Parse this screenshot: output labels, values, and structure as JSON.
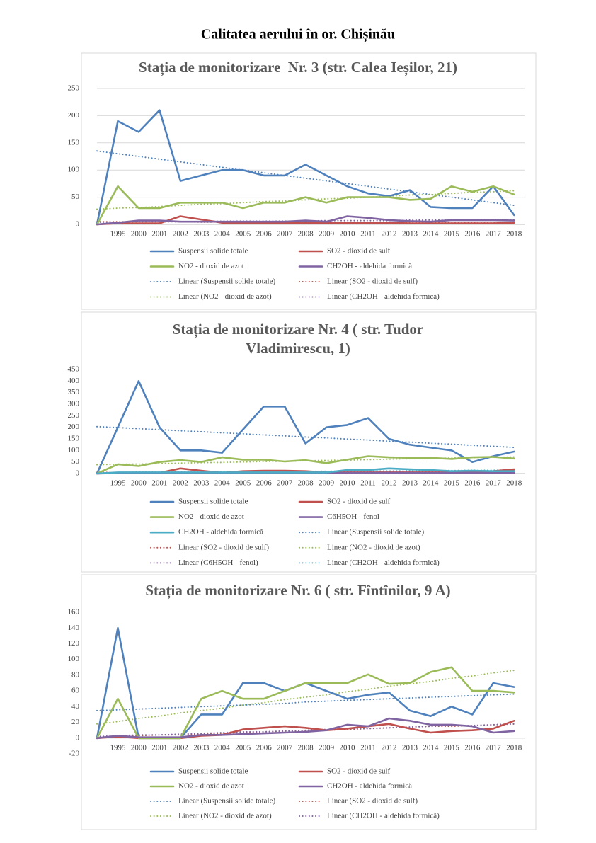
{
  "title": "Calitatea aerului în or. Chișinău",
  "chart_data": [
    {
      "type": "line",
      "title": "Stația de monitorizare  Nr. 3 (str. Calea Ieșilor, 21)",
      "categories": [
        null,
        "1995",
        "2000",
        "2001",
        "2002",
        "2003",
        "2004",
        "2005",
        "2006",
        "2007",
        "2008",
        "2009",
        "2010",
        "2011",
        "2012",
        "2013",
        "2014",
        "2015",
        "2016",
        "2017",
        "2018"
      ],
      "ylim": [
        0,
        250
      ],
      "yticks": [
        0,
        50,
        100,
        150,
        200,
        250
      ],
      "grid": true,
      "legend": "bottom",
      "series": [
        {
          "name": "Suspensii solide totale",
          "color": "#4f81bd",
          "style": "solid",
          "values": [
            0,
            190,
            170,
            210,
            80,
            90,
            100,
            100,
            90,
            90,
            110,
            90,
            70,
            57,
            52,
            63,
            32,
            30,
            30,
            70,
            17
          ]
        },
        {
          "name": "SO2 - dioxid de sulf",
          "color": "#c0504d",
          "style": "solid",
          "values": [
            0,
            2,
            2,
            2,
            15,
            9,
            3,
            3,
            3,
            3,
            3,
            3,
            3,
            3,
            3,
            2,
            2,
            2,
            2,
            2,
            3
          ]
        },
        {
          "name": "NO2 - dioxid de azot",
          "color": "#9bbb59",
          "style": "solid",
          "values": [
            0,
            70,
            30,
            30,
            40,
            40,
            40,
            30,
            40,
            40,
            50,
            40,
            50,
            50,
            50,
            45,
            47,
            70,
            60,
            70,
            55
          ]
        },
        {
          "name": "CH2OH - aldehida formică",
          "color": "#8064a2",
          "style": "solid",
          "values": [
            0,
            3,
            7,
            7,
            5,
            5,
            5,
            5,
            5,
            5,
            7,
            5,
            15,
            12,
            8,
            6,
            5,
            8,
            8,
            8,
            7
          ]
        },
        {
          "name": "Linear (Suspensii solide totale)",
          "color": "#4f81bd",
          "style": "dotted",
          "values": [
            135,
            130,
            125,
            120,
            115,
            110,
            105,
            100,
            95,
            90,
            85,
            80,
            75,
            70,
            65,
            60,
            55,
            50,
            45,
            40,
            35
          ]
        },
        {
          "name": "Linear (SO2 - dioxid de sulf)",
          "color": "#c0504d",
          "style": "dotted",
          "values": [
            5,
            5,
            5,
            5,
            5,
            4,
            4,
            4,
            4,
            4,
            4,
            4,
            4,
            4,
            4,
            3,
            3,
            3,
            3,
            3,
            3
          ]
        },
        {
          "name": "Linear (NO2 - dioxid de azot)",
          "color": "#9bbb59",
          "style": "dotted",
          "values": [
            28,
            30,
            31,
            33,
            35,
            37,
            38,
            40,
            42,
            43,
            45,
            47,
            48,
            50,
            52,
            54,
            55,
            57,
            59,
            60,
            62
          ]
        },
        {
          "name": "Linear (CH2OH - aldehida formică)",
          "color": "#8064a2",
          "style": "dotted",
          "values": [
            4,
            4,
            5,
            5,
            5,
            5,
            6,
            6,
            6,
            6,
            6,
            7,
            7,
            7,
            7,
            8,
            8,
            8,
            8,
            9,
            9
          ]
        }
      ]
    },
    {
      "type": "line",
      "title": [
        "Stația de monitorizare Nr. 4 ( str. Tudor",
        "Vladimirescu, 1)"
      ],
      "categories": [
        null,
        "1995",
        "2000",
        "2001",
        "2002",
        "2003",
        "2004",
        "2005",
        "2006",
        "2007",
        "2008",
        "2009",
        "2010",
        "2011",
        "2012",
        "2013",
        "2014",
        "2015",
        "2016",
        "2017",
        "2018"
      ],
      "ylim": [
        0,
        450
      ],
      "yticks": [
        0,
        50,
        100,
        150,
        200,
        250,
        300,
        350,
        400,
        450
      ],
      "grid": false,
      "legend": "bottom",
      "series": [
        {
          "name": "Suspensii solide totale",
          "color": "#4f81bd",
          "style": "solid",
          "values": [
            0,
            200,
            400,
            200,
            100,
            100,
            90,
            190,
            290,
            290,
            130,
            200,
            210,
            240,
            150,
            125,
            112,
            100,
            50,
            75,
            95
          ]
        },
        {
          "name": "SO2 - dioxid de sulf",
          "color": "#c0504d",
          "style": "solid",
          "values": [
            0,
            3,
            3,
            3,
            22,
            12,
            3,
            10,
            12,
            12,
            10,
            5,
            5,
            5,
            5,
            5,
            5,
            5,
            5,
            10,
            18
          ]
        },
        {
          "name": "NO2 - dioxid de azot",
          "color": "#9bbb59",
          "style": "solid",
          "values": [
            0,
            40,
            32,
            50,
            58,
            50,
            70,
            60,
            60,
            52,
            58,
            45,
            60,
            75,
            70,
            68,
            68,
            63,
            70,
            72,
            65
          ]
        },
        {
          "name": "C6H5OH - fenol",
          "color": "#8064a2",
          "style": "solid",
          "values": [
            0,
            2,
            2,
            2,
            2,
            2,
            2,
            2,
            2,
            2,
            2,
            2,
            3,
            3,
            3,
            3,
            3,
            3,
            3,
            3,
            3
          ]
        },
        {
          "name": "CH2OH - aldehida formică",
          "color": "#4bacc6",
          "style": "solid",
          "values": [
            0,
            5,
            5,
            5,
            5,
            5,
            5,
            5,
            5,
            5,
            5,
            5,
            15,
            15,
            22,
            18,
            15,
            10,
            12,
            10,
            10
          ]
        },
        {
          "name": "Linear (Suspensii solide totale)",
          "color": "#4f81bd",
          "style": "dotted",
          "values": [
            203,
            199,
            194,
            190,
            185,
            181,
            176,
            172,
            167,
            163,
            158,
            154,
            149,
            145,
            140,
            136,
            131,
            127,
            122,
            118,
            113
          ]
        },
        {
          "name": "Linear (SO2 - dioxid de sulf)",
          "color": "#c0504d",
          "style": "dotted",
          "values": [
            5,
            5,
            6,
            6,
            6,
            6,
            7,
            7,
            7,
            7,
            7,
            8,
            8,
            8,
            8,
            9,
            9,
            9,
            9,
            10,
            10
          ]
        },
        {
          "name": "Linear (NO2 - dioxid de azot)",
          "color": "#9bbb59",
          "style": "dotted",
          "values": [
            38,
            40,
            41,
            43,
            45,
            47,
            48,
            50,
            52,
            53,
            55,
            57,
            58,
            60,
            62,
            64,
            65,
            67,
            69,
            70,
            72
          ]
        },
        {
          "name": "Linear (C6H5OH - fenol)",
          "color": "#8064a2",
          "style": "dotted",
          "values": [
            2,
            2,
            2,
            2,
            2,
            2,
            2,
            2,
            2,
            2,
            3,
            3,
            3,
            3,
            3,
            3,
            3,
            3,
            3,
            3,
            3
          ]
        },
        {
          "name": "Linear (CH2OH - aldehida formică)",
          "color": "#4bacc6",
          "style": "dotted",
          "values": [
            3,
            4,
            4,
            5,
            5,
            6,
            7,
            7,
            8,
            8,
            9,
            10,
            10,
            11,
            11,
            12,
            13,
            13,
            14,
            14,
            15
          ]
        }
      ]
    },
    {
      "type": "line",
      "title": "Stația de monitorizare Nr. 6 ( str. Fîntînilor, 9 A)",
      "categories": [
        null,
        "1995",
        "2000",
        "2001",
        "2002",
        "2003",
        "2004",
        "2005",
        "2006",
        "2007",
        "2008",
        "2009",
        "2010",
        "2011",
        "2012",
        "2013",
        "2014",
        "2015",
        "2016",
        "2017",
        "2018"
      ],
      "ylim": [
        -20,
        160
      ],
      "yticks": [
        -20,
        0,
        20,
        40,
        60,
        80,
        100,
        120,
        140,
        160
      ],
      "grid": false,
      "legend": "bottom",
      "series": [
        {
          "name": "Suspensii solide totale",
          "color": "#4f81bd",
          "style": "solid",
          "values": [
            0,
            140,
            0,
            0,
            0,
            30,
            30,
            70,
            70,
            60,
            70,
            60,
            50,
            55,
            58,
            35,
            28,
            40,
            30,
            70,
            65
          ]
        },
        {
          "name": "SO2 - dioxid de sulf",
          "color": "#c0504d",
          "style": "solid",
          "values": [
            0,
            2,
            0,
            0,
            0,
            3,
            4,
            11,
            13,
            15,
            13,
            10,
            12,
            15,
            18,
            12,
            7,
            9,
            10,
            12,
            22
          ]
        },
        {
          "name": "NO2 - dioxid de azot",
          "color": "#9bbb59",
          "style": "solid",
          "values": [
            0,
            50,
            0,
            0,
            0,
            50,
            60,
            50,
            50,
            60,
            70,
            70,
            70,
            81,
            69,
            70,
            84,
            90,
            60,
            60,
            58
          ]
        },
        {
          "name": "CH2OH - aldehida formică",
          "color": "#8064a2",
          "style": "solid",
          "values": [
            0,
            3,
            1,
            1,
            1,
            4,
            4,
            5,
            6,
            7,
            8,
            10,
            17,
            15,
            25,
            22,
            17,
            17,
            15,
            7,
            9
          ]
        },
        {
          "name": "Linear (Suspensii solide totale)",
          "color": "#4f81bd",
          "style": "dotted",
          "values": [
            35,
            36,
            37,
            38,
            39,
            40,
            41,
            42,
            43,
            44,
            46,
            47,
            48,
            49,
            50,
            51,
            52,
            53,
            54,
            55,
            56
          ]
        },
        {
          "name": "Linear (SO2 - dioxid de sulf)",
          "color": "#c0504d",
          "style": "dotted",
          "values": [
            1,
            2,
            3,
            4,
            4,
            5,
            6,
            7,
            8,
            9,
            9,
            10,
            11,
            12,
            13,
            14,
            15,
            15,
            16,
            17,
            18
          ]
        },
        {
          "name": "Linear (NO2 - dioxid de azot)",
          "color": "#9bbb59",
          "style": "dotted",
          "values": [
            18,
            21,
            25,
            28,
            32,
            35,
            38,
            42,
            45,
            49,
            52,
            55,
            59,
            62,
            66,
            69,
            72,
            76,
            79,
            83,
            86
          ]
        },
        {
          "name": "Linear (CH2OH - aldehida formică)",
          "color": "#8064a2",
          "style": "dotted",
          "values": [
            2,
            3,
            4,
            4,
            5,
            6,
            7,
            8,
            8,
            9,
            10,
            11,
            12,
            12,
            13,
            14,
            15,
            16,
            16,
            17,
            18
          ]
        }
      ]
    }
  ]
}
